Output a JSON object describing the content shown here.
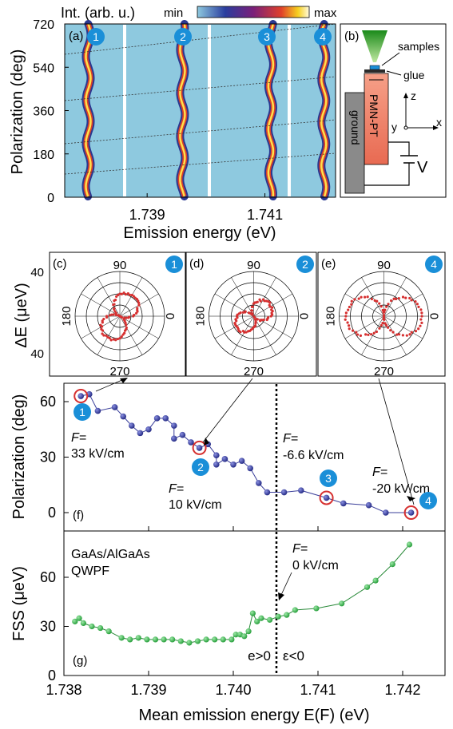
{
  "colorbar": {
    "title": "Int. (arb. u.)",
    "min_label": "min",
    "max_label": "max"
  },
  "colors": {
    "map_bg": "#8ec9df",
    "dot_blue": "#1f2580",
    "dot_green": "#23a83a",
    "dot_red": "#d63030",
    "badge": "#1a8fd8",
    "pmn": "#f2866e",
    "ground": "#8a8a8a"
  },
  "panel_a": {
    "label": "(a)",
    "ylabel": "Polarization (deg)",
    "xlabel": "Emission energy (eV)",
    "yticks": [
      "0",
      "180",
      "360",
      "540",
      "720"
    ],
    "xticks": [
      "1.739",
      "1.741"
    ],
    "badges": [
      "1",
      "2",
      "3",
      "4"
    ]
  },
  "panel_b": {
    "label": "(b)",
    "samples": "samples",
    "glue": "glue",
    "pmn": "PMN-PT",
    "ground": "ground",
    "axis_z": "z",
    "axis_y": "y",
    "axis_x": "x",
    "voltage": "V"
  },
  "polar": {
    "ylabel": "ΔE (μeV)",
    "r_ticks": [
      "40",
      "40"
    ],
    "angles": [
      "90",
      "180",
      "0",
      "270"
    ],
    "panels": [
      {
        "label": "(c)",
        "badge": "1",
        "lobe_angle": 60,
        "radius": 0.55
      },
      {
        "label": "(d)",
        "badge": "2",
        "lobe_angle": 35,
        "radius": 0.45
      },
      {
        "label": "(e)",
        "badge": "4",
        "lobe_angle": 0,
        "radius": 0.85
      }
    ]
  },
  "panel_f": {
    "label": "(f)",
    "ylabel": "Polarization (deg)",
    "yticks": [
      "0",
      "30",
      "60"
    ],
    "annotations": [
      {
        "f": "F=",
        "value": "33 kV/cm"
      },
      {
        "f": "F=",
        "value": "10 kV/cm"
      },
      {
        "f": "F=",
        "value": "-6.6 kV/cm"
      },
      {
        "f": "F=",
        "value": "-20 kV/cm"
      }
    ],
    "badges": [
      "1",
      "2",
      "3",
      "4"
    ]
  },
  "panel_g": {
    "label": "(g)",
    "ylabel": "FSS (μeV)",
    "yticks": [
      "0",
      "30",
      "60"
    ],
    "sample_line1": "GaAs/AlGaAs",
    "sample_line2": "QWPF",
    "f_label": "F=",
    "f_value": "0 kV/cm",
    "strain_pos": "e>0",
    "strain_neg": "ε<0"
  },
  "xaxis": {
    "label": "Mean emission energy E(F) (eV)",
    "ticks": [
      "1.738",
      "1.739",
      "1.740",
      "1.741",
      "1.742"
    ]
  },
  "chart_data": [
    {
      "type": "heatmap",
      "title": "",
      "xlabel": "Emission energy (eV)",
      "ylabel": "Polarization (deg)",
      "ylim": [
        0,
        720
      ],
      "xlim": [
        1.7376,
        1.7422
      ],
      "lines_center_eV": [
        1.738,
        1.7396,
        1.7411,
        1.742
      ]
    },
    {
      "type": "scatter",
      "xlabel": "Mean emission energy E(F) (eV)",
      "ylabel": "Polarization (deg)",
      "xlim": [
        1.738,
        1.7425
      ],
      "ylim": [
        -10,
        70
      ],
      "x": [
        1.7382,
        1.7383,
        1.7384,
        1.7386,
        1.7387,
        1.7388,
        1.7389,
        1.739,
        1.7391,
        1.7392,
        1.7393,
        1.7393,
        1.7394,
        1.7395,
        1.7396,
        1.7397,
        1.7398,
        1.7398,
        1.7399,
        1.74,
        1.7401,
        1.7402,
        1.7403,
        1.7404,
        1.7406,
        1.7408,
        1.7411,
        1.7413,
        1.7416,
        1.7418,
        1.7421
      ],
      "y": [
        63,
        64,
        55,
        57,
        52,
        47,
        43,
        45,
        51,
        51,
        47,
        40,
        42,
        38,
        35,
        37,
        31,
        26,
        29,
        26,
        28,
        24,
        16,
        11,
        11,
        12,
        8,
        5,
        4,
        0,
        0
      ]
    },
    {
      "type": "scatter",
      "xlabel": "Mean emission energy E(F) (eV)",
      "ylabel": "FSS (μeV)",
      "xlim": [
        1.738,
        1.7425
      ],
      "ylim": [
        0,
        80
      ],
      "x": [
        1.73813,
        1.73818,
        1.73823,
        1.73833,
        1.73843,
        1.73853,
        1.73868,
        1.73878,
        1.73888,
        1.73898,
        1.73908,
        1.73918,
        1.73928,
        1.73938,
        1.73948,
        1.73958,
        1.73968,
        1.73978,
        1.73988,
        1.73998,
        1.74003,
        1.74008,
        1.74013,
        1.74018,
        1.74023,
        1.74028,
        1.74033,
        1.74043,
        1.74053,
        1.74063,
        1.74073,
        1.74098,
        1.74128,
        1.74158,
        1.74168,
        1.74188,
        1.74208
      ],
      "y": [
        33,
        35,
        32,
        30,
        29,
        27,
        23,
        22,
        23,
        22,
        22,
        22,
        22,
        21,
        20,
        21,
        22,
        22,
        22,
        22,
        25,
        25,
        24,
        27,
        38,
        33,
        35,
        34,
        36,
        37,
        40,
        41,
        44,
        54,
        58,
        68,
        80
      ]
    },
    {
      "type": "scatter",
      "title": "polar (c)",
      "ylabel": "ΔE (μeV)",
      "rlim": [
        0,
        40
      ],
      "lobe_angle_deg": 60
    },
    {
      "type": "scatter",
      "title": "polar (d)",
      "ylabel": "ΔE (μeV)",
      "rlim": [
        0,
        40
      ],
      "lobe_angle_deg": 35
    },
    {
      "type": "scatter",
      "title": "polar (e)",
      "ylabel": "ΔE (μeV)",
      "rlim": [
        0,
        40
      ],
      "lobe_angle_deg": 0
    }
  ]
}
